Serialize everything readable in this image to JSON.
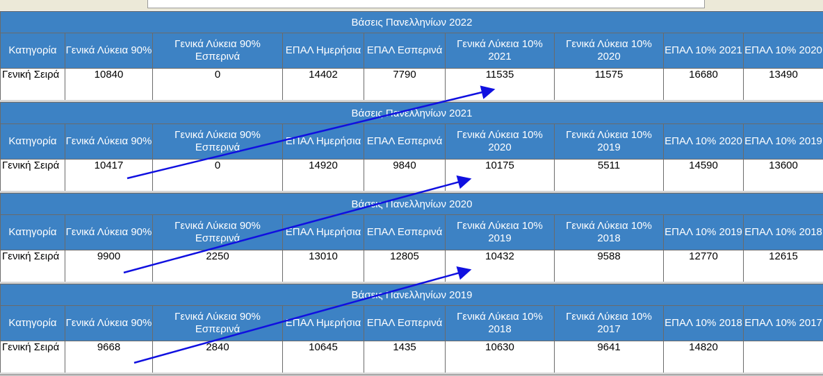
{
  "tables": [
    {
      "title": "Βάσεις Πανελληνίων 2022",
      "headers": [
        "Κατηγορία",
        "Γενικά Λύκεια 90%",
        "Γενικά Λύκεια 90% Εσπερινά",
        "ΕΠΑΛ Ημερήσια",
        "ΕΠΑΛ Εσπερινά",
        "Γενικά Λύκεια 10% 2021",
        "Γενικά Λύκεια 10% 2020",
        "ΕΠΑΛ 10% 2021",
        "ΕΠΑΛ 10% 2020"
      ],
      "row": [
        "Γενική Σειρά",
        "10840",
        "0",
        "14402",
        "7790",
        "11535",
        "11575",
        "16680",
        "13490"
      ]
    },
    {
      "title": "Βάσεις Πανελληνίων 2021",
      "headers": [
        "Κατηγορία",
        "Γενικά Λύκεια 90%",
        "Γενικά Λύκεια 90% Εσπερινά",
        "ΕΠΑΛ Ημερήσια",
        "ΕΠΑΛ Εσπερινά",
        "Γενικά Λύκεια 10% 2020",
        "Γενικά Λύκεια 10% 2019",
        "ΕΠΑΛ 10% 2020",
        "ΕΠΑΛ 10% 2019"
      ],
      "row": [
        "Γενική Σειρά",
        "10417",
        "0",
        "14920",
        "9840",
        "10175",
        "5511",
        "14590",
        "13600"
      ]
    },
    {
      "title": "Βάσεις Πανελληνίων 2020",
      "headers": [
        "Κατηγορία",
        "Γενικά Λύκεια 90%",
        "Γενικά Λύκεια 90% Εσπερινά",
        "ΕΠΑΛ Ημερήσια",
        "ΕΠΑΛ Εσπερινά",
        "Γενικά Λύκεια 10% 2019",
        "Γενικά Λύκεια 10% 2018",
        "ΕΠΑΛ 10% 2019",
        "ΕΠΑΛ 10% 2018"
      ],
      "row": [
        "Γενική Σειρά",
        "9900",
        "2250",
        "13010",
        "12805",
        "10432",
        "9588",
        "12770",
        "12615"
      ]
    },
    {
      "title": "Βάσεις Πανελληνίων 2019",
      "headers": [
        "Κατηγορία",
        "Γενικά Λύκεια 90%",
        "Γενικά Λύκεια 90% Εσπερινά",
        "ΕΠΑΛ Ημερήσια",
        "ΕΠΑΛ Εσπερινά",
        "Γενικά Λύκεια 10% 2018",
        "Γενικά Λύκεια 10% 2017",
        "ΕΠΑΛ 10% 2018",
        "ΕΠΑΛ 10% 2017"
      ],
      "row": [
        "Γενική Σειρά",
        "9668",
        "2840",
        "10645",
        "1435",
        "10630",
        "9641",
        "14820",
        ""
      ]
    }
  ],
  "annotation_color": "#1010e0"
}
